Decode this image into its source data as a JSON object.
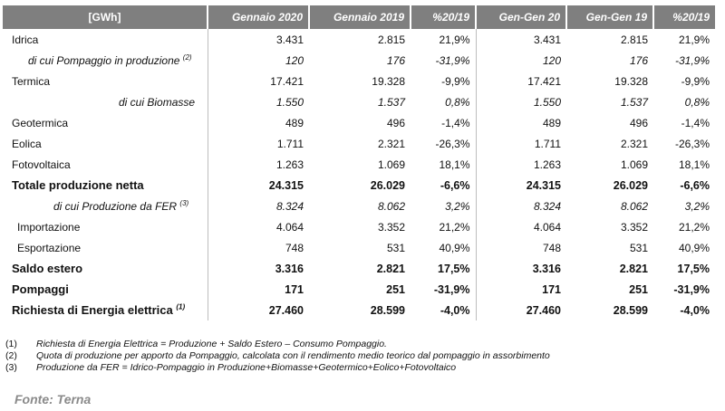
{
  "table": {
    "headers": [
      "[GWh]",
      "Gennaio 2020",
      "Gennaio 2019",
      "%20/19",
      "Gen-Gen 20",
      "Gen-Gen 19",
      "%20/19"
    ],
    "rows": [
      {
        "label": "Idrica",
        "sup": "",
        "values": [
          "3.431",
          "2.815",
          "21,9%",
          "3.431",
          "2.815",
          "21,9%"
        ]
      },
      {
        "label": "di cui Pompaggio in produzione",
        "sup": "(2)",
        "values": [
          "120",
          "176",
          "-31,9%",
          "120",
          "176",
          "-31,9%"
        ]
      },
      {
        "label": "Termica",
        "sup": "",
        "values": [
          "17.421",
          "19.328",
          "-9,9%",
          "17.421",
          "19.328",
          "-9,9%"
        ]
      },
      {
        "label": "di cui Biomasse",
        "sup": "",
        "values": [
          "1.550",
          "1.537",
          "0,8%",
          "1.550",
          "1.537",
          "0,8%"
        ]
      },
      {
        "label": "Geotermica",
        "sup": "",
        "values": [
          "489",
          "496",
          "-1,4%",
          "489",
          "496",
          "-1,4%"
        ]
      },
      {
        "label": "Eolica",
        "sup": "",
        "values": [
          "1.711",
          "2.321",
          "-26,3%",
          "1.711",
          "2.321",
          "-26,3%"
        ]
      },
      {
        "label": "Fotovoltaica",
        "sup": "",
        "values": [
          "1.263",
          "1.069",
          "18,1%",
          "1.263",
          "1.069",
          "18,1%"
        ]
      },
      {
        "label": "Totale produzione netta",
        "sup": "",
        "values": [
          "24.315",
          "26.029",
          "-6,6%",
          "24.315",
          "26.029",
          "-6,6%"
        ]
      },
      {
        "label": "di cui Produzione da FER",
        "sup": "(3)",
        "values": [
          "8.324",
          "8.062",
          "3,2%",
          "8.324",
          "8.062",
          "3,2%"
        ]
      },
      {
        "label": "Importazione",
        "sup": "",
        "values": [
          "4.064",
          "3.352",
          "21,2%",
          "4.064",
          "3.352",
          "21,2%"
        ]
      },
      {
        "label": "Esportazione",
        "sup": "",
        "values": [
          "748",
          "531",
          "40,9%",
          "748",
          "531",
          "40,9%"
        ]
      },
      {
        "label": "Saldo estero",
        "sup": "",
        "values": [
          "3.316",
          "2.821",
          "17,5%",
          "3.316",
          "2.821",
          "17,5%"
        ]
      },
      {
        "label": "Pompaggi",
        "sup": "",
        "values": [
          "171",
          "251",
          "-31,9%",
          "171",
          "251",
          "-31,9%"
        ]
      },
      {
        "label": "Richiesta di Energia elettrica",
        "sup": "(1)",
        "values": [
          "27.460",
          "28.599",
          "-4,0%",
          "27.460",
          "28.599",
          "-4,0%"
        ]
      }
    ]
  },
  "notes": [
    {
      "num": "(1)",
      "text": "Richiesta di Energia Elettrica = Produzione + Saldo Estero – Consumo Pompaggio."
    },
    {
      "num": "(2)",
      "text": "Quota di produzione per apporto da Pompaggio, calcolata con il rendimento medio teorico dal pompaggio in assorbimento"
    },
    {
      "num": "(3)",
      "text": "Produzione da FER = Idrico-Pompaggio in Produzione+Biomasse+Geotermico+Eolico+Fotovoltaico"
    }
  ],
  "source": "Fonte: Terna",
  "colors": {
    "header_bg": "#7f7f7f",
    "header_text": "#ffffff",
    "source_text": "#8a8a8a"
  }
}
